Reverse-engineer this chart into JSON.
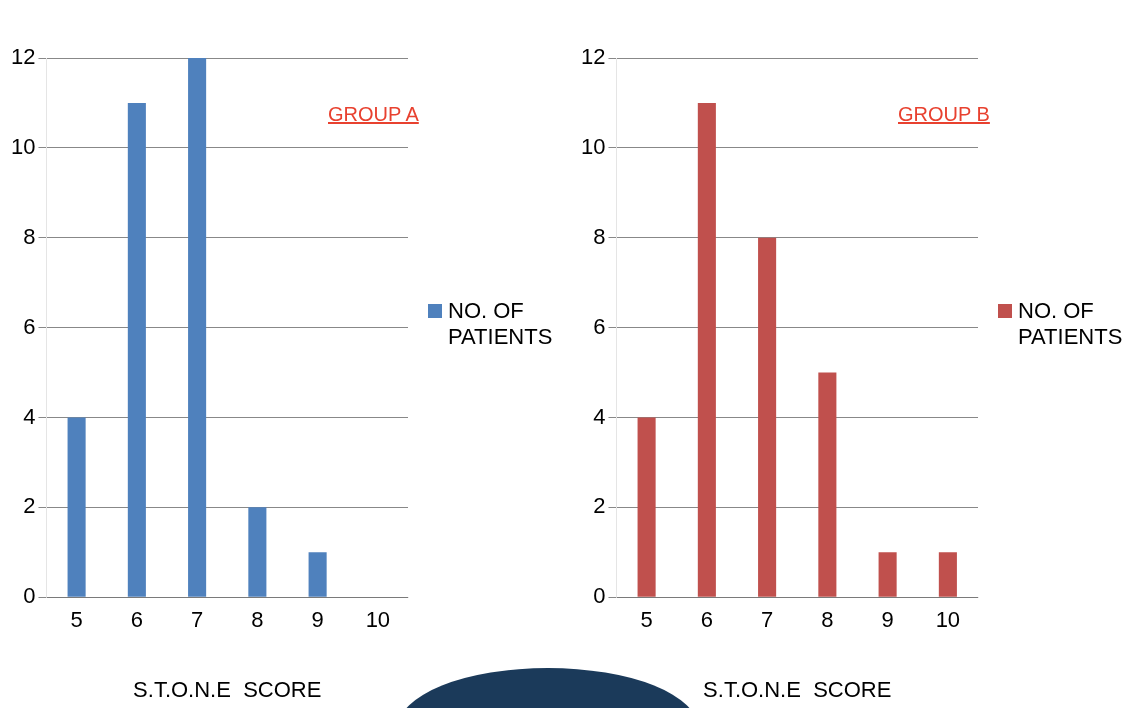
{
  "chart_data": [
    {
      "type": "bar",
      "categories": [
        "5",
        "6",
        "7",
        "8",
        "9",
        "10"
      ],
      "series": [
        {
          "name": "NO. OF PATIENTS",
          "color": "#4f81bd",
          "values": [
            4,
            11,
            12,
            2,
            1,
            0
          ]
        }
      ],
      "ylim": [
        0,
        12
      ],
      "yticks": [
        0,
        2,
        4,
        6,
        8,
        10,
        12
      ],
      "grid": "y",
      "legend": "right",
      "xlabel": "S.T.O.N.E  SCORE",
      "annotations": [
        "GROUP A"
      ]
    },
    {
      "type": "bar",
      "categories": [
        "5",
        "6",
        "7",
        "8",
        "9",
        "10"
      ],
      "series": [
        {
          "name": "NO. OF PATIENTS",
          "color": "#c0504d",
          "values": [
            4,
            11,
            8,
            5,
            1,
            1
          ]
        }
      ],
      "ylim": [
        0,
        12
      ],
      "yticks": [
        0,
        2,
        4,
        6,
        8,
        10,
        12
      ],
      "grid": "y",
      "legend": "right",
      "xlabel": "S.T.O.N.E  SCORE",
      "annotations": [
        "GROUP B"
      ]
    }
  ]
}
